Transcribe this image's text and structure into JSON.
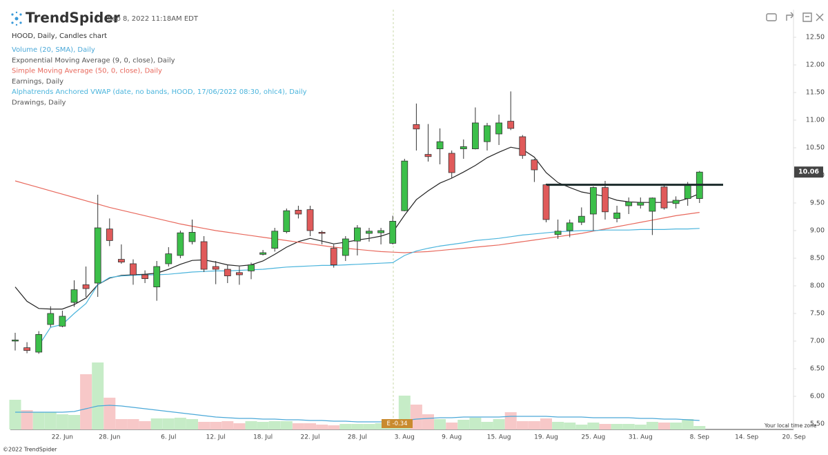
{
  "chart_data": {
    "type": "candlestick",
    "brand": "TrendSpider",
    "timestamp": "Sep 8, 2022 11:18AM EDT",
    "title": "HOOD, Daily, Candles chart",
    "footer": "©2022 TrendSpider",
    "timezone_note": "Your local time zone",
    "categories": [
      null,
      null,
      null,
      null,
      "22. Jun",
      null,
      null,
      null,
      "28. Jun",
      null,
      null,
      null,
      null,
      "6. Jul",
      null,
      null,
      null,
      "12. Jul",
      null,
      null,
      null,
      "18. Jul",
      null,
      null,
      null,
      "22. Jul",
      null,
      null,
      null,
      "28. Jul",
      null,
      null,
      null,
      "3. Aug",
      null,
      null,
      null,
      "9. Aug",
      null,
      null,
      null,
      "15. Aug",
      null,
      null,
      null,
      "19. Aug",
      null,
      null,
      null,
      "25. Aug",
      null,
      null,
      null,
      "31. Aug",
      null,
      null,
      null,
      null,
      "8. Sep",
      null,
      null,
      null,
      "14. Sep",
      null,
      null,
      null,
      "20. Sep"
    ],
    "open": [
      7.0,
      6.88,
      6.8,
      7.3,
      7.27,
      7.7,
      8.02,
      8.05,
      9.03,
      8.48,
      8.4,
      8.2,
      7.98,
      8.4,
      8.55,
      8.8,
      8.8,
      8.35,
      8.3,
      8.24,
      8.27,
      8.57,
      8.68,
      8.98,
      9.37,
      9.38,
      8.97,
      8.68,
      8.55,
      8.81,
      8.95,
      8.96,
      8.77,
      9.36,
      10.92,
      10.38,
      10.48,
      10.4,
      10.48,
      10.48,
      10.61,
      10.75,
      10.98,
      10.7,
      10.28,
      9.83,
      8.93,
      9.0,
      9.15,
      9.3,
      9.78,
      9.22,
      9.45,
      9.46,
      9.35,
      9.79,
      9.49,
      9.58,
      9.58,
      null,
      null,
      null,
      null,
      null,
      null,
      null,
      null
    ],
    "high": [
      7.15,
      6.98,
      7.18,
      7.63,
      7.55,
      8.1,
      8.35,
      9.65,
      9.22,
      8.75,
      8.48,
      8.28,
      8.45,
      8.7,
      9.0,
      9.2,
      8.9,
      8.45,
      8.38,
      8.35,
      8.42,
      8.65,
      9.05,
      9.4,
      9.45,
      9.45,
      9.0,
      8.75,
      8.9,
      9.1,
      9.05,
      9.05,
      9.27,
      10.3,
      11.3,
      10.93,
      10.85,
      10.45,
      10.65,
      11.23,
      10.95,
      11.1,
      11.52,
      10.73,
      10.3,
      9.85,
      9.2,
      9.2,
      9.42,
      9.8,
      9.9,
      9.45,
      9.6,
      9.6,
      9.6,
      9.82,
      9.62,
      9.88,
      10.08,
      null,
      null,
      null,
      null,
      null,
      null,
      null,
      null
    ],
    "low": [
      6.83,
      6.78,
      6.77,
      7.25,
      7.25,
      7.62,
      7.8,
      7.8,
      8.72,
      8.4,
      8.02,
      8.05,
      7.73,
      8.35,
      8.5,
      8.75,
      8.25,
      8.03,
      8.05,
      8.02,
      8.12,
      8.55,
      8.62,
      8.95,
      9.22,
      8.9,
      8.75,
      8.33,
      8.45,
      8.55,
      8.8,
      8.75,
      8.75,
      9.35,
      10.45,
      10.25,
      10.2,
      9.95,
      10.3,
      10.47,
      10.45,
      10.55,
      10.82,
      10.3,
      9.88,
      9.15,
      8.85,
      8.88,
      9.1,
      9.0,
      9.2,
      9.15,
      9.3,
      9.4,
      8.92,
      9.38,
      9.4,
      9.45,
      9.5,
      null,
      null,
      null,
      null,
      null,
      null,
      null,
      null
    ],
    "close": [
      7.02,
      6.83,
      7.12,
      7.5,
      7.45,
      7.93,
      7.95,
      9.05,
      8.82,
      8.43,
      8.2,
      8.13,
      8.35,
      8.58,
      8.96,
      8.97,
      8.3,
      8.3,
      8.18,
      8.2,
      8.38,
      8.6,
      8.99,
      9.36,
      9.3,
      9.0,
      8.95,
      8.38,
      8.85,
      9.05,
      8.99,
      9.0,
      9.17,
      10.26,
      10.84,
      10.34,
      10.61,
      10.05,
      10.52,
      10.95,
      10.9,
      10.95,
      10.85,
      10.36,
      10.1,
      9.2,
      8.99,
      9.14,
      9.26,
      9.78,
      9.34,
      9.32,
      9.52,
      9.51,
      9.59,
      9.41,
      9.55,
      9.82,
      10.06,
      null,
      null,
      null,
      null,
      null,
      null,
      null,
      null
    ],
    "volume": [
      21.5,
      14,
      12.5,
      12.5,
      11,
      10.5,
      40,
      48.5,
      23,
      7.5,
      7.5,
      6,
      8,
      8,
      8.5,
      7.5,
      5.5,
      5.5,
      6,
      4.5,
      6,
      5.5,
      6,
      6,
      4.5,
      4.5,
      3.5,
      3,
      4,
      4,
      4,
      4.5,
      5,
      24.5,
      18,
      11,
      7.5,
      5,
      7,
      8.5,
      5.5,
      7.5,
      12.5,
      6,
      6,
      8,
      5.5,
      5,
      3.5,
      5,
      4,
      4,
      4,
      3.5,
      5.5,
      5,
      5,
      7.5,
      2.5,
      null,
      null,
      null,
      null,
      null,
      null,
      null,
      null
    ],
    "up_color": "#3cbf4a",
    "down_color": "#e05a5a",
    "volume_up_color": "#c6ecc7",
    "volume_down_color": "#f7c8c8",
    "series": [
      {
        "name": "Volume (20, SMA), Daily",
        "color": "#4aa8d8",
        "axis": "volume",
        "values": [
          12.5,
          12.5,
          12.5,
          12.5,
          12.5,
          13,
          15,
          17,
          17.5,
          17,
          16,
          15,
          14,
          13,
          12,
          11,
          10,
          9,
          8.5,
          8,
          8,
          7.5,
          7.5,
          7,
          7,
          6.5,
          6.5,
          6,
          6,
          5.5,
          5.5,
          5.5,
          5.5,
          6.5,
          7.5,
          8,
          8.5,
          8.5,
          9,
          9,
          9,
          9,
          9.5,
          9.5,
          9.5,
          9.5,
          9,
          9,
          9,
          8.5,
          8.5,
          8.5,
          8.5,
          8,
          8,
          7.5,
          7.5,
          7,
          6.5,
          null,
          null,
          null,
          null,
          null,
          null,
          null,
          null
        ]
      },
      {
        "name": "Exponential Moving Average (9, 0, close), Daily",
        "color": "#222222",
        "values": [
          7.98,
          7.72,
          7.59,
          7.58,
          7.58,
          7.66,
          7.78,
          8.02,
          8.14,
          8.19,
          8.2,
          8.21,
          8.23,
          8.3,
          8.39,
          8.46,
          8.47,
          8.43,
          8.38,
          8.36,
          8.38,
          8.45,
          8.57,
          8.7,
          8.8,
          8.86,
          8.81,
          8.76,
          8.79,
          8.83,
          8.86,
          8.9,
          8.97,
          9.28,
          9.56,
          9.72,
          9.86,
          9.95,
          10.06,
          10.18,
          10.32,
          10.42,
          10.51,
          10.47,
          10.33,
          10.05,
          9.87,
          9.78,
          9.7,
          9.66,
          9.62,
          9.55,
          9.52,
          9.51,
          9.51,
          9.51,
          9.52,
          9.58,
          9.67,
          null,
          null,
          null,
          null,
          null,
          null,
          null,
          null
        ]
      },
      {
        "name": "Simple Moving Average (50, 0, close), Daily",
        "color": "#e8685c",
        "values": [
          9.9,
          9.84,
          9.78,
          9.72,
          9.66,
          9.6,
          9.54,
          9.48,
          9.42,
          9.37,
          9.32,
          9.27,
          9.22,
          9.17,
          9.12,
          9.08,
          9.04,
          9.0,
          8.97,
          8.94,
          8.91,
          8.88,
          8.85,
          8.82,
          8.79,
          8.76,
          8.73,
          8.7,
          8.68,
          8.66,
          8.64,
          8.62,
          8.61,
          8.6,
          8.61,
          8.62,
          8.64,
          8.66,
          8.68,
          8.7,
          8.72,
          8.74,
          8.77,
          8.8,
          8.83,
          8.86,
          8.89,
          8.92,
          8.95,
          8.99,
          9.03,
          9.07,
          9.11,
          9.15,
          9.19,
          9.23,
          9.27,
          9.3,
          9.33,
          null,
          null,
          null,
          null,
          null,
          null,
          null,
          null
        ]
      },
      {
        "name": "Alphatrends Anchored VWAP (date, no bands, HOOD, 17/06/2022 08:30, ohlc4), Daily",
        "color": "#4ab4dc",
        "values": [
          null,
          null,
          6.92,
          7.25,
          7.3,
          7.5,
          7.68,
          8.02,
          8.15,
          8.18,
          8.19,
          8.2,
          8.2,
          8.21,
          8.23,
          8.25,
          8.26,
          8.27,
          8.27,
          8.28,
          8.29,
          8.3,
          8.32,
          8.34,
          8.35,
          8.36,
          8.37,
          8.37,
          8.38,
          8.39,
          8.4,
          8.41,
          8.42,
          8.55,
          8.63,
          8.68,
          8.72,
          8.75,
          8.78,
          8.82,
          8.84,
          8.86,
          8.89,
          8.92,
          8.94,
          8.96,
          8.98,
          8.99,
          9.0,
          9.0,
          9.01,
          9.01,
          9.01,
          9.02,
          9.02,
          9.02,
          9.03,
          9.03,
          9.04,
          null,
          null,
          null,
          null,
          null,
          null,
          null,
          null
        ]
      }
    ],
    "earnings": {
      "name": "Earnings, Daily",
      "label": "E -0.34"
    },
    "drawings": {
      "name": "Drawings, Daily",
      "level": 9.83,
      "color": "#1a2a2a"
    },
    "ylim": [
      5.4,
      13.0
    ],
    "yticks": [
      {
        "value": 12.5,
        "label": "12.50"
      },
      {
        "value": 12,
        "label": "12.00"
      },
      {
        "value": 11.5,
        "label": "11.50"
      },
      {
        "value": 11,
        "label": "11.00"
      },
      {
        "value": 10.5,
        "label": "10.50"
      },
      {
        "value": 10,
        "label": "10.00"
      },
      {
        "value": 9.5,
        "label": "9.50"
      },
      {
        "value": 9,
        "label": "9.00"
      },
      {
        "value": 8.5,
        "label": "8.50"
      },
      {
        "value": 8,
        "label": "8.00"
      },
      {
        "value": 7.5,
        "label": "7.50"
      },
      {
        "value": 7,
        "label": "7.00"
      },
      {
        "value": 6.5,
        "label": "6.50"
      },
      {
        "value": 6,
        "label": "6.00"
      },
      {
        "value": 5.5,
        "label": "5.50"
      }
    ],
    "grid": false
  }
}
